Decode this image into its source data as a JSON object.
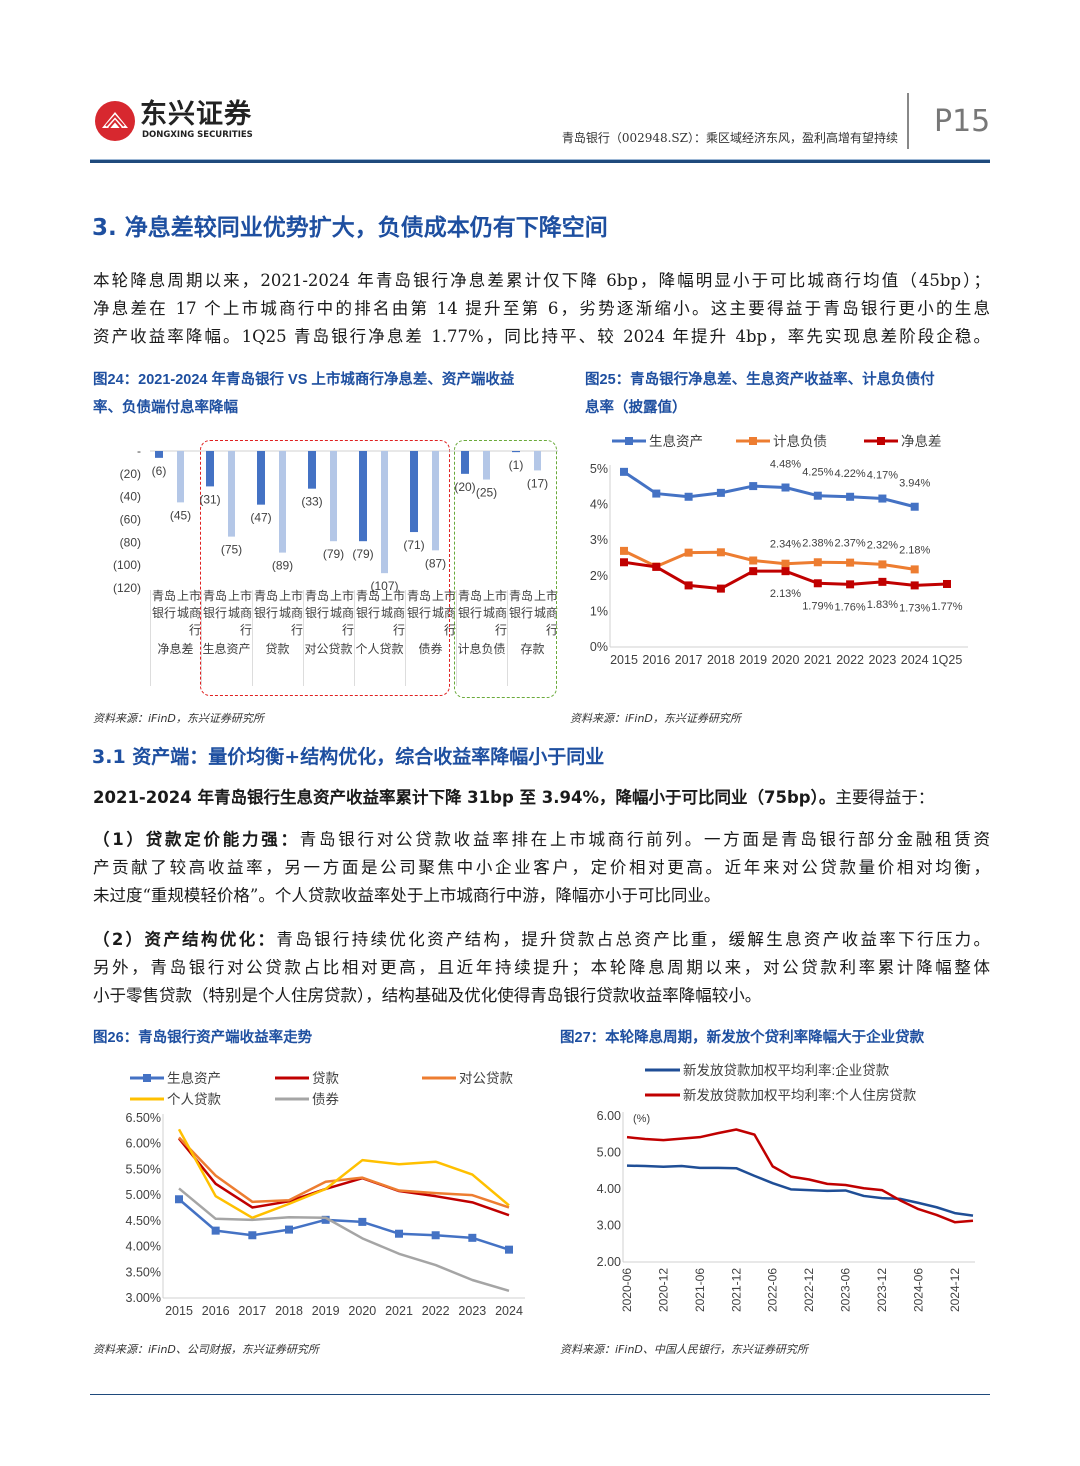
{
  "header": {
    "logo_cn": "东兴证券",
    "logo_en": "DONGXING SECURITIES",
    "report_title": "青岛银行（002948.SZ）：乘区域经济东风，盈利高增有望持续",
    "page": "P15"
  },
  "section3": {
    "title": "3. 净息差较同业优势扩大，负债成本仍有下降空间",
    "para_lines": [
      "本轮降息周期以来，2021-2024 年青岛银行净息差累计仅下降 6bp，降幅明显小于可比城商行均值（45bp）；",
      "净息差在 17 个上市城商行中的排名由第 14 提升至第 6，劣势逐渐缩小。这主要得益于青岛银行更小的生息",
      "资产收益率降幅。1Q25 青岛银行净息差 1.77%，同比持平、较 2024 年提升 4bp，率先实现息差阶段企稳。"
    ]
  },
  "fig24": {
    "caption_lines": [
      "图24：2021-2024 年青岛银行 VS 上市城商行净息差、资产端收益",
      "率、负债端付息率降幅"
    ],
    "source": "资料来源：iFinD，东兴证券研究所"
  },
  "fig25": {
    "caption_lines": [
      "图25：青岛银行净息差、生息资产收益率、计息负债付",
      "息率（披露值）"
    ],
    "source": "资料来源：iFinD，东兴证券研究所"
  },
  "section31": {
    "title": "3.1 资产端：量价均衡+结构优化，综合收益率降幅小于同业",
    "lead_bold": "2021-2024 年青岛银行生息资产收益率累计下降 31bp 至 3.94%，降幅小于可比同业（75bp）。",
    "lead_rest": "主要得益于：",
    "p1_bold": "（1）贷款定价能力强：",
    "p1_lines": [
      "青岛银行对公贷款收益率排在上市城商行前列。一方面是青岛银行部分金融租赁资",
      "产贡献了较高收益率，另一方面是公司聚焦中小企业客户，定价相对更高。近年来对公贷款量价相对均衡，",
      "未过度“重规模轻价格”。个人贷款收益率处于上市城商行中游，降幅亦小于可比同业。"
    ],
    "p2_bold": "（2）资产结构优化：",
    "p2_lines": [
      "青岛银行持续优化资产结构，提升贷款占总资产比重，缓解生息资产收益率下行压力。",
      "另外，青岛银行对公贷款占比相对更高，且近年持续提升；本轮降息周期以来，对公贷款利率累计降幅整体",
      "小于零售贷款（特别是个人住房贷款），结构基础及优化使得青岛银行贷款收益率降幅较小。"
    ]
  },
  "fig26": {
    "caption": "图26：青岛银行资产端收益率走势",
    "source": "资料来源：iFinD、公司财报，东兴证券研究所"
  },
  "fig27": {
    "caption": "图27：本轮降息周期，新发放个贷利率降幅大于企业贷款",
    "source": "资料来源：iFinD、中国人民银行，东兴证券研究所"
  },
  "chart_data": [
    {
      "type": "bar",
      "id": "fig24",
      "groups": [
        "净息差",
        "生息资产",
        "贷款",
        "对公贷款",
        "个人贷款",
        "债券",
        "计息负债",
        "存款"
      ],
      "subcategories": [
        "青岛银行",
        "上市城商行"
      ],
      "series": [
        {
          "values": [
            -6,
            -31,
            -47,
            -33,
            -79,
            -71,
            -20,
            -1
          ],
          "color": "#4472c4"
        },
        {
          "values": [
            -45,
            -75,
            -89,
            -79,
            -107,
            -87,
            -25,
            -17
          ],
          "color": "#b4c7e7"
        }
      ],
      "data_labels": [
        [
          "(6)",
          "(31)",
          "(47)",
          "(33)",
          "(79)",
          "(71)",
          "(20)",
          "(1)"
        ],
        [
          "(45)",
          "(75)",
          "(89)",
          "(79)",
          "(107)",
          "(87)",
          "(25)",
          "(17)"
        ]
      ],
      "ylim": [
        -120,
        0
      ],
      "yticks": [
        "-",
        "(20)",
        "(40)",
        "(60)",
        "(80)",
        "(100)",
        "(120)"
      ],
      "highlight_boxes": [
        {
          "color": "#e02020",
          "groups": [
            "生息资产",
            "贷款",
            "对公贷款",
            "个人贷款",
            "债券"
          ]
        },
        {
          "color": "#6aaa3a",
          "groups": [
            "计息负债",
            "存款"
          ]
        }
      ]
    },
    {
      "type": "line",
      "id": "fig25",
      "x": [
        "2015",
        "2016",
        "2017",
        "2018",
        "2019",
        "2020",
        "2021",
        "2022",
        "2023",
        "2024",
        "1Q25"
      ],
      "ylim": [
        0,
        5
      ],
      "yticks": [
        "0%",
        "1%",
        "2%",
        "3%",
        "4%",
        "5%"
      ],
      "legend": "top",
      "series": [
        {
          "name": "生息资产",
          "color": "#4472c4",
          "marker": "square",
          "values": [
            4.92,
            4.31,
            4.22,
            4.33,
            4.52,
            4.48,
            4.25,
            4.22,
            4.17,
            3.94,
            null
          ],
          "labels": [
            null,
            null,
            null,
            null,
            null,
            "4.48%",
            "4.25%",
            "4.22%",
            "4.17%",
            "3.94%",
            null
          ]
        },
        {
          "name": "计息负债",
          "color": "#ed7d31",
          "marker": "square",
          "values": [
            2.7,
            2.26,
            2.65,
            2.66,
            2.43,
            2.34,
            2.38,
            2.37,
            2.32,
            2.18,
            null
          ],
          "labels": [
            null,
            null,
            null,
            null,
            null,
            "2.34%",
            "2.38%",
            "2.37%",
            "2.32%",
            "2.18%",
            null
          ]
        },
        {
          "name": "净息差",
          "color": "#c00000",
          "marker": "square",
          "values": [
            2.38,
            2.25,
            1.73,
            1.64,
            2.13,
            2.13,
            1.79,
            1.76,
            1.83,
            1.73,
            1.77
          ],
          "labels": [
            null,
            null,
            null,
            null,
            null,
            "2.13%",
            "1.79%",
            "1.76%",
            "1.83%",
            "1.73%",
            "1.77%"
          ]
        }
      ]
    },
    {
      "type": "line",
      "id": "fig26",
      "x": [
        "2015",
        "2016",
        "2017",
        "2018",
        "2019",
        "2020",
        "2021",
        "2022",
        "2023",
        "2024"
      ],
      "ylim": [
        3.0,
        6.5
      ],
      "yticks": [
        "3.00%",
        "3.50%",
        "4.00%",
        "4.50%",
        "5.00%",
        "5.50%",
        "6.00%",
        "6.50%"
      ],
      "legend": "top",
      "series": [
        {
          "name": "生息资产",
          "color": "#4472c4",
          "marker": "square",
          "values": [
            4.92,
            4.31,
            4.22,
            4.33,
            4.52,
            4.48,
            4.25,
            4.22,
            4.17,
            3.94
          ]
        },
        {
          "name": "贷款",
          "color": "#c00000",
          "values": [
            6.1,
            5.22,
            4.76,
            4.88,
            5.12,
            5.33,
            5.08,
            4.98,
            4.86,
            4.61
          ]
        },
        {
          "name": "对公贷款",
          "color": "#ed7d31",
          "values": [
            6.12,
            5.38,
            4.87,
            4.9,
            5.26,
            5.34,
            5.09,
            5.04,
            5.0,
            4.76
          ]
        },
        {
          "name": "个人贷款",
          "color": "#ffc000",
          "values": [
            6.28,
            4.98,
            4.56,
            4.83,
            5.12,
            5.68,
            5.6,
            5.65,
            5.4,
            4.8
          ]
        },
        {
          "name": "债券",
          "color": "#a5a5a5",
          "values": [
            5.13,
            4.54,
            4.52,
            4.57,
            4.56,
            4.16,
            3.86,
            3.64,
            3.35,
            3.14
          ]
        }
      ]
    },
    {
      "type": "line",
      "id": "fig27",
      "x": [
        "2020-06",
        "2020-09",
        "2020-12",
        "2021-03",
        "2021-06",
        "2021-09",
        "2021-12",
        "2022-03",
        "2022-06",
        "2022-09",
        "2022-12",
        "2023-03",
        "2023-06",
        "2023-09",
        "2023-12",
        "2024-03",
        "2024-06",
        "2024-09",
        "2024-12",
        "2025-03"
      ],
      "xticks": [
        "2020-06",
        "2020-12",
        "2021-06",
        "2021-12",
        "2022-06",
        "2022-12",
        "2023-06",
        "2023-12",
        "2024-06",
        "2024-12"
      ],
      "ylim": [
        2.0,
        6.0
      ],
      "yticks": [
        "2.00",
        "3.00",
        "4.00",
        "5.00",
        "6.00"
      ],
      "unit": "(%)",
      "legend": "top",
      "series": [
        {
          "name": "新发放贷款加权平均利率:企业贷款",
          "color": "#1f4e96",
          "values": [
            4.64,
            4.63,
            4.61,
            4.63,
            4.58,
            4.58,
            4.57,
            4.36,
            4.16,
            3.99,
            3.97,
            3.95,
            3.96,
            3.81,
            3.75,
            3.73,
            3.62,
            3.5,
            3.34,
            3.27
          ]
        },
        {
          "name": "新发放贷款加权平均利率:个人住房贷款",
          "color": "#c00000",
          "values": [
            5.42,
            5.37,
            5.34,
            5.38,
            5.42,
            5.53,
            5.63,
            5.49,
            4.62,
            4.34,
            4.26,
            4.14,
            4.11,
            4.02,
            3.97,
            3.69,
            3.45,
            3.29,
            3.09,
            3.13
          ]
        }
      ]
    }
  ]
}
